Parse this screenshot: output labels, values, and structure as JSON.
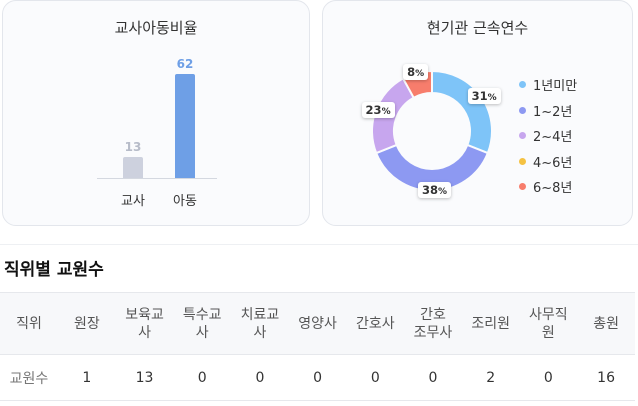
{
  "ratio_chart": {
    "title": "교사아동비율",
    "bars": [
      {
        "label": "교사",
        "value": 13,
        "color": "#cdd1de",
        "value_color": "#b7bcc9"
      },
      {
        "label": "아동",
        "value": 62,
        "color": "#6e9fe6",
        "value_color": "#6e9fe6"
      }
    ]
  },
  "tenure_chart": {
    "title": "현기관 근속연수",
    "slices": [
      {
        "label": "1년미만",
        "percent": 31,
        "color": "#7ec4f8"
      },
      {
        "label": "1~2년",
        "percent": 38,
        "color": "#8d99f2"
      },
      {
        "label": "2~4년",
        "percent": 23,
        "color": "#c7a6ee"
      },
      {
        "label": "4~6년",
        "percent": 0,
        "color": "#f5c242"
      },
      {
        "label": "6~8년",
        "percent": 8,
        "color": "#f77d6c"
      }
    ],
    "unit": "%"
  },
  "staff_table": {
    "title": "직위별 교원수",
    "row_header_label": "직위",
    "columns": [
      "원장",
      "보육교사",
      "특수교사",
      "치료교사",
      "영양사",
      "간호사",
      "간호조무사",
      "조리원",
      "사무직원",
      "총원"
    ],
    "column_display": [
      "원장",
      "보육교\n사",
      "특수교\n사",
      "치료교\n사",
      "영양사",
      "간호사",
      "간호\n조무사",
      "조리원",
      "사무직\n원",
      "총원"
    ],
    "row_label": "교원수",
    "values": [
      "1",
      "13",
      "0",
      "0",
      "0",
      "0",
      "0",
      "2",
      "0",
      "16"
    ]
  }
}
